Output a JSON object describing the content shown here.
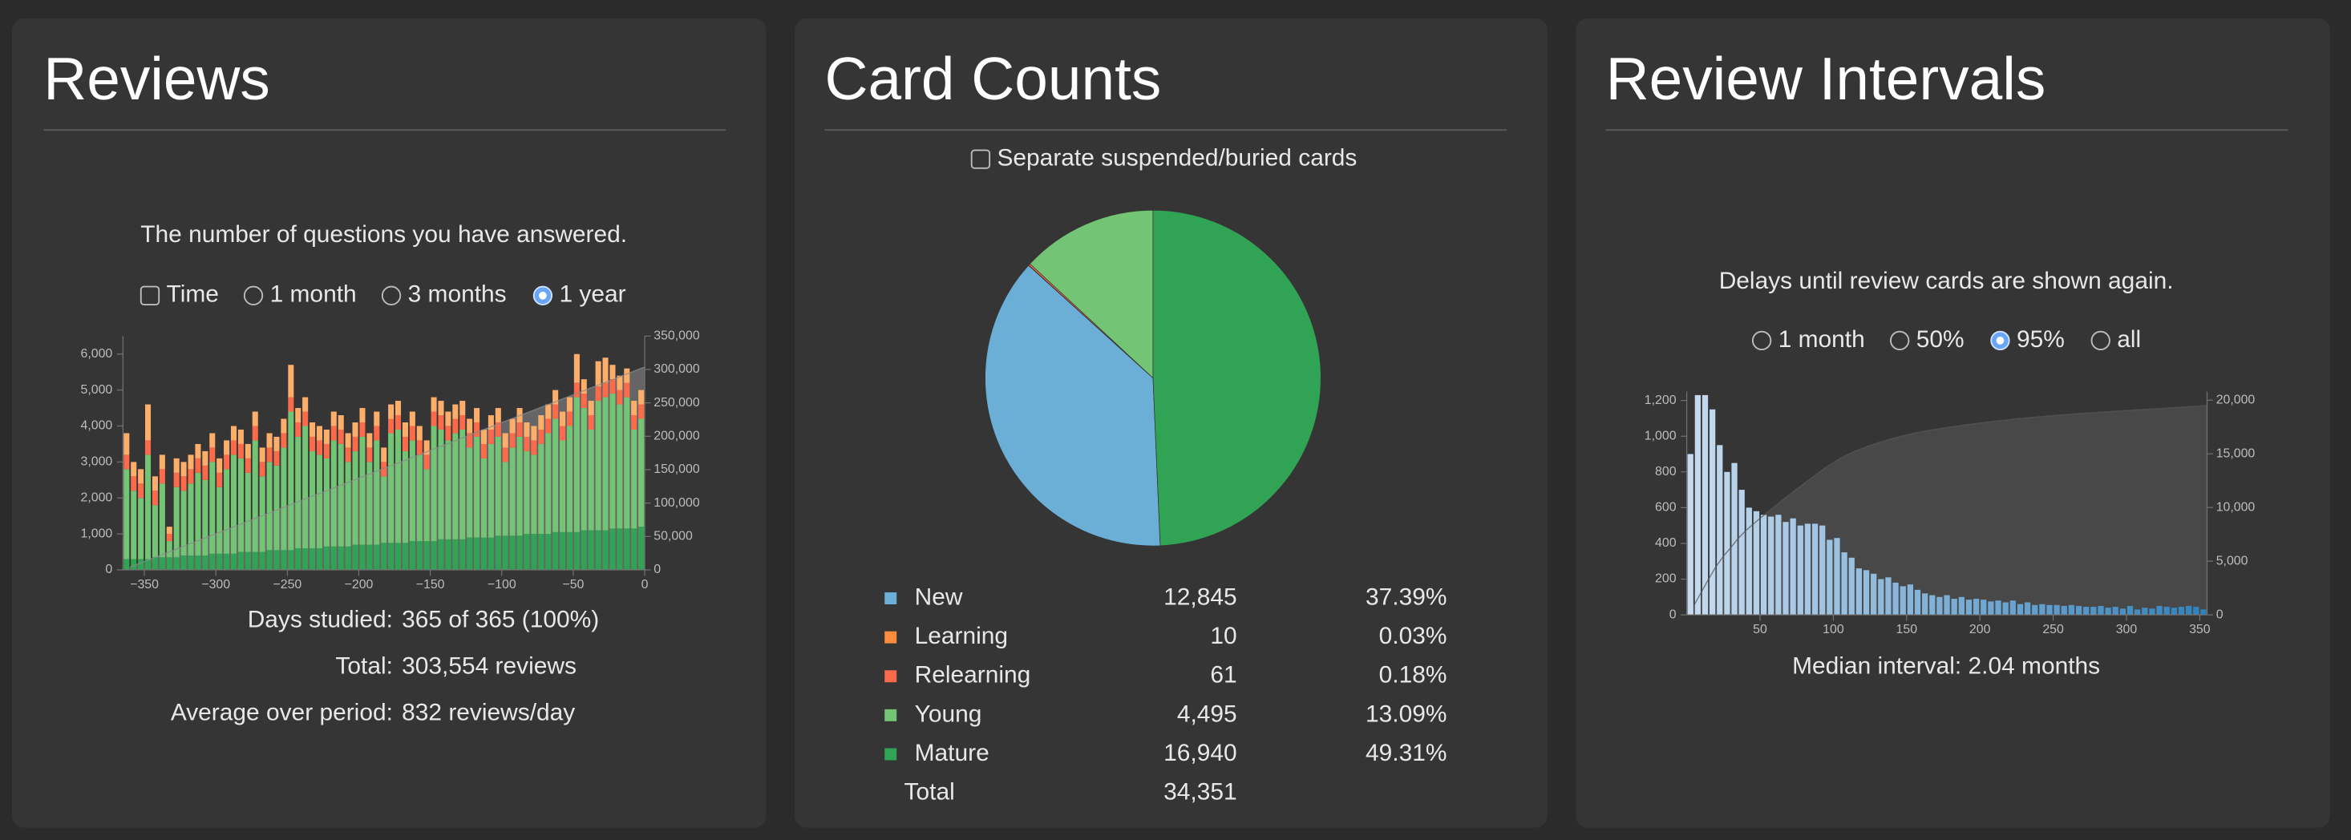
{
  "panels": [
    {
      "title": "Reviews",
      "subtitle": "The number of questions you have answered.",
      "controls": [
        {
          "type": "checkbox",
          "label": "Time",
          "checked": false
        },
        {
          "type": "radio",
          "label": "1 month",
          "checked": false
        },
        {
          "type": "radio",
          "label": "3 months",
          "checked": false
        },
        {
          "type": "radio",
          "label": "1 year",
          "checked": true
        }
      ],
      "stats": [
        {
          "label": "Days studied:",
          "value": "365 of 365 (100%)"
        },
        {
          "label": "Total:",
          "value": "303,554 reviews"
        },
        {
          "label": "Average over period:",
          "value": "832 reviews/day"
        }
      ]
    },
    {
      "title": "Card Counts",
      "controls": [
        {
          "type": "checkbox",
          "label": "Separate suspended/buried cards",
          "checked": false
        }
      ],
      "total_label": "Total",
      "total": "34,351"
    },
    {
      "title": "Review Intervals",
      "subtitle": "Delays until review cards are shown again.",
      "controls": [
        {
          "type": "radio",
          "label": "1 month",
          "checked": false
        },
        {
          "type": "radio",
          "label": "50%",
          "checked": false
        },
        {
          "type": "radio",
          "label": "95%",
          "checked": true
        },
        {
          "type": "radio",
          "label": "all",
          "checked": false
        }
      ],
      "footer": "Median interval: 2.04 months"
    }
  ],
  "chart_data": [
    {
      "type": "histogram",
      "stacked": true,
      "bins": [
        -365,
        -360,
        -355,
        -350,
        -345,
        -340,
        -335,
        -330,
        -325,
        -320,
        -315,
        -310,
        -305,
        -300,
        -295,
        -290,
        -285,
        -280,
        -275,
        -270,
        -265,
        -260,
        -255,
        -250,
        -245,
        -240,
        -235,
        -230,
        -225,
        -220,
        -215,
        -210,
        -205,
        -200,
        -195,
        -190,
        -185,
        -180,
        -175,
        -170,
        -165,
        -160,
        -155,
        -150,
        -145,
        -140,
        -135,
        -130,
        -125,
        -120,
        -115,
        -110,
        -105,
        -100,
        -95,
        -90,
        -85,
        -80,
        -75,
        -70,
        -65,
        -60,
        -55,
        -50,
        -45,
        -40,
        -35,
        -30,
        -25,
        -20,
        -15,
        -10,
        -5,
        0
      ],
      "xlim": [
        -365,
        0
      ],
      "xticks": [
        {
          "value": -350,
          "label": "−350"
        },
        {
          "value": -300,
          "label": "−300"
        },
        {
          "value": -250,
          "label": "−250"
        },
        {
          "value": -200,
          "label": "−200"
        },
        {
          "value": -150,
          "label": "−150"
        },
        {
          "value": -100,
          "label": "−100"
        },
        {
          "value": -50,
          "label": "−50"
        },
        0
      ],
      "ylim": [
        0,
        6500
      ],
      "yticks": [
        0,
        {
          "value": 1000,
          "label": "1,000"
        },
        {
          "value": 2000,
          "label": "2,000"
        },
        {
          "value": 3000,
          "label": "3,000"
        },
        {
          "value": 4000,
          "label": "4,000"
        },
        {
          "value": 5000,
          "label": "5,000"
        },
        {
          "value": 6000,
          "label": "6,000"
        }
      ],
      "y2lim": [
        0,
        350000
      ],
      "y2ticks": [
        0,
        {
          "value": 50000,
          "label": "50,000"
        },
        {
          "value": 100000,
          "label": "100,000"
        },
        {
          "value": 150000,
          "label": "150,000"
        },
        {
          "value": 200000,
          "label": "200,000"
        },
        {
          "value": 250000,
          "label": "250,000"
        },
        {
          "value": 300000,
          "label": "300,000"
        },
        {
          "value": 350000,
          "label": "350,000"
        }
      ],
      "series": [
        {
          "color": "#31a354",
          "values": [
            300,
            300,
            300,
            300,
            350,
            350,
            350,
            350,
            400,
            400,
            400,
            400,
            450,
            450,
            450,
            450,
            500,
            500,
            500,
            500,
            550,
            550,
            550,
            550,
            600,
            600,
            600,
            600,
            650,
            650,
            650,
            650,
            700,
            700,
            700,
            700,
            750,
            750,
            750,
            750,
            800,
            800,
            800,
            800,
            850,
            850,
            850,
            850,
            900,
            900,
            900,
            900,
            950,
            950,
            950,
            950,
            1000,
            1000,
            1000,
            1000,
            1050,
            1050,
            1050,
            1050,
            1100,
            1100,
            1100,
            1100,
            1150,
            1150,
            1150,
            1150,
            1200
          ]
        },
        {
          "color": "#74c476",
          "values": [
            2500,
            1900,
            1700,
            2900,
            1450,
            2050,
            450,
            1950,
            1800,
            2000,
            2300,
            2100,
            2550,
            1850,
            2350,
            2750,
            2600,
            2200,
            3100,
            2100,
            2450,
            2350,
            2850,
            3850,
            3100,
            3400,
            2700,
            2600,
            2450,
            2950,
            2850,
            2350,
            2600,
            3000,
            2300,
            2900,
            1850,
            3050,
            3150,
            2550,
            2800,
            2400,
            2000,
            3200,
            3050,
            2750,
            2950,
            3050,
            2500,
            2800,
            2200,
            2600,
            2750,
            2050,
            2450,
            2750,
            2300,
            2200,
            2500,
            2800,
            3150,
            2550,
            2950,
            3750,
            3400,
            2800,
            3600,
            3700,
            3750,
            3450,
            3650,
            2750,
            3000
          ]
        },
        {
          "color": "#fb6a4a",
          "values": [
            400,
            400,
            400,
            400,
            400,
            400,
            200,
            400,
            400,
            400,
            400,
            400,
            400,
            400,
            400,
            400,
            400,
            400,
            400,
            400,
            400,
            400,
            400,
            400,
            400,
            400,
            400,
            400,
            400,
            400,
            400,
            400,
            400,
            400,
            400,
            400,
            400,
            400,
            400,
            400,
            400,
            400,
            400,
            400,
            400,
            400,
            400,
            400,
            400,
            400,
            400,
            400,
            400,
            400,
            400,
            400,
            400,
            400,
            400,
            400,
            400,
            400,
            400,
            400,
            400,
            400,
            400,
            400,
            400,
            400,
            400,
            400,
            400
          ]
        },
        {
          "color": "#fdae6b",
          "values": [
            600,
            400,
            400,
            1000,
            400,
            400,
            200,
            400,
            400,
            400,
            400,
            400,
            400,
            400,
            400,
            400,
            400,
            400,
            400,
            400,
            400,
            400,
            400,
            900,
            400,
            400,
            400,
            400,
            400,
            400,
            400,
            400,
            400,
            400,
            400,
            400,
            400,
            400,
            400,
            400,
            400,
            400,
            400,
            400,
            400,
            400,
            400,
            400,
            400,
            400,
            400,
            400,
            400,
            400,
            400,
            400,
            400,
            400,
            400,
            400,
            400,
            400,
            400,
            800,
            400,
            400,
            700,
            700,
            400,
            400,
            400,
            400,
            400
          ]
        },
        {
          "axis": "y2",
          "style": "area",
          "color": "#8c8c8c",
          "values": [
            4160,
            8320,
            12480,
            16640,
            20800,
            24960,
            29120,
            33280,
            37440,
            41600,
            45760,
            49920,
            54080,
            58240,
            62400,
            66560,
            70720,
            74880,
            79040,
            83200,
            87360,
            91520,
            95680,
            99840,
            104000,
            108160,
            112320,
            116480,
            120640,
            124800,
            128960,
            133120,
            137280,
            141440,
            145600,
            149760,
            153920,
            158080,
            162240,
            166400,
            170560,
            174720,
            178880,
            183040,
            187200,
            191360,
            195520,
            199680,
            203840,
            208000,
            212160,
            216320,
            220480,
            224640,
            228800,
            232960,
            237120,
            241280,
            245440,
            249600,
            253760,
            257920,
            262080,
            266240,
            270400,
            274560,
            278720,
            282880,
            287040,
            291200,
            295360,
            299520,
            303680
          ]
        }
      ]
    },
    {
      "type": "pie",
      "categories": [
        "New",
        "Learning",
        "Relearning",
        "Young",
        "Mature"
      ],
      "values": [
        12845,
        10,
        61,
        4495,
        16940
      ],
      "value_labels": [
        "12,845",
        "10",
        "61",
        "4,495",
        "16,940"
      ],
      "percentages": [
        "37.39%",
        "0.03%",
        "0.18%",
        "13.09%",
        "49.31%"
      ],
      "colors": [
        "#6baed6",
        "#fd8d3c",
        "#fb6a4a",
        "#74c476",
        "#31a354"
      ]
    },
    {
      "type": "histogram",
      "stacked": false,
      "bins": [
        0,
        5,
        10,
        15,
        20,
        25,
        30,
        35,
        40,
        45,
        50,
        55,
        60,
        65,
        70,
        75,
        80,
        85,
        90,
        95,
        100,
        105,
        110,
        115,
        120,
        125,
        130,
        135,
        140,
        145,
        150,
        155,
        160,
        165,
        170,
        175,
        180,
        185,
        190,
        195,
        200,
        205,
        210,
        215,
        220,
        225,
        230,
        235,
        240,
        245,
        250,
        255,
        260,
        265,
        270,
        275,
        280,
        285,
        290,
        295,
        300,
        305,
        310,
        315,
        320,
        325,
        330,
        335,
        340,
        345,
        350,
        355
      ],
      "xlim": [
        0,
        355
      ],
      "xticks": [
        50,
        100,
        150,
        200,
        250,
        300,
        350
      ],
      "ylim": [
        0,
        1250
      ],
      "yticks": [
        0,
        200,
        400,
        600,
        800,
        {
          "value": 1000,
          "label": "1,000"
        },
        {
          "value": 1200,
          "label": "1,200"
        }
      ],
      "y2lim": [
        0,
        20800
      ],
      "y2ticks": [
        0,
        {
          "value": 5000,
          "label": "5,000"
        },
        {
          "value": 10000,
          "label": "10,000"
        },
        {
          "value": 15000,
          "label": "15,000"
        },
        {
          "value": 20000,
          "label": "20,000"
        }
      ],
      "series": [
        {
          "color_range": [
            "#c6dbef",
            "#3182bd"
          ],
          "values": [
            900,
            1230,
            1230,
            1150,
            950,
            800,
            850,
            700,
            600,
            580,
            560,
            550,
            560,
            520,
            540,
            500,
            510,
            510,
            500,
            420,
            430,
            350,
            320,
            260,
            250,
            230,
            200,
            210,
            180,
            160,
            170,
            140,
            120,
            110,
            100,
            110,
            90,
            100,
            85,
            90,
            85,
            75,
            80,
            70,
            80,
            60,
            70,
            55,
            60,
            55,
            55,
            50,
            55,
            50,
            45,
            45,
            50,
            40,
            45,
            35,
            50,
            30,
            40,
            35,
            50,
            45,
            40,
            45,
            50,
            45,
            30
          ]
        },
        {
          "axis": "y2",
          "style": "area",
          "color": "#575757",
          "values": [
            900,
            2130,
            3360,
            4510,
            5460,
            6260,
            7110,
            7810,
            8410,
            8990,
            9550,
            10100,
            10660,
            11180,
            11720,
            12220,
            12730,
            13240,
            13740,
            14160,
            14590,
            14940,
            15260,
            15520,
            15770,
            16000,
            16200,
            16410,
            16590,
            16750,
            16920,
            17060,
            17180,
            17290,
            17390,
            17500,
            17590,
            17690,
            17775,
            17865,
            17950,
            18025,
            18105,
            18175,
            18255,
            18315,
            18385,
            18440,
            18500,
            18555,
            18610,
            18660,
            18715,
            18765,
            18810,
            18855,
            18905,
            18945,
            18990,
            19025,
            19075,
            19105,
            19145,
            19180,
            19230,
            19275,
            19315,
            19360,
            19410,
            19455,
            19485
          ]
        }
      ]
    }
  ]
}
